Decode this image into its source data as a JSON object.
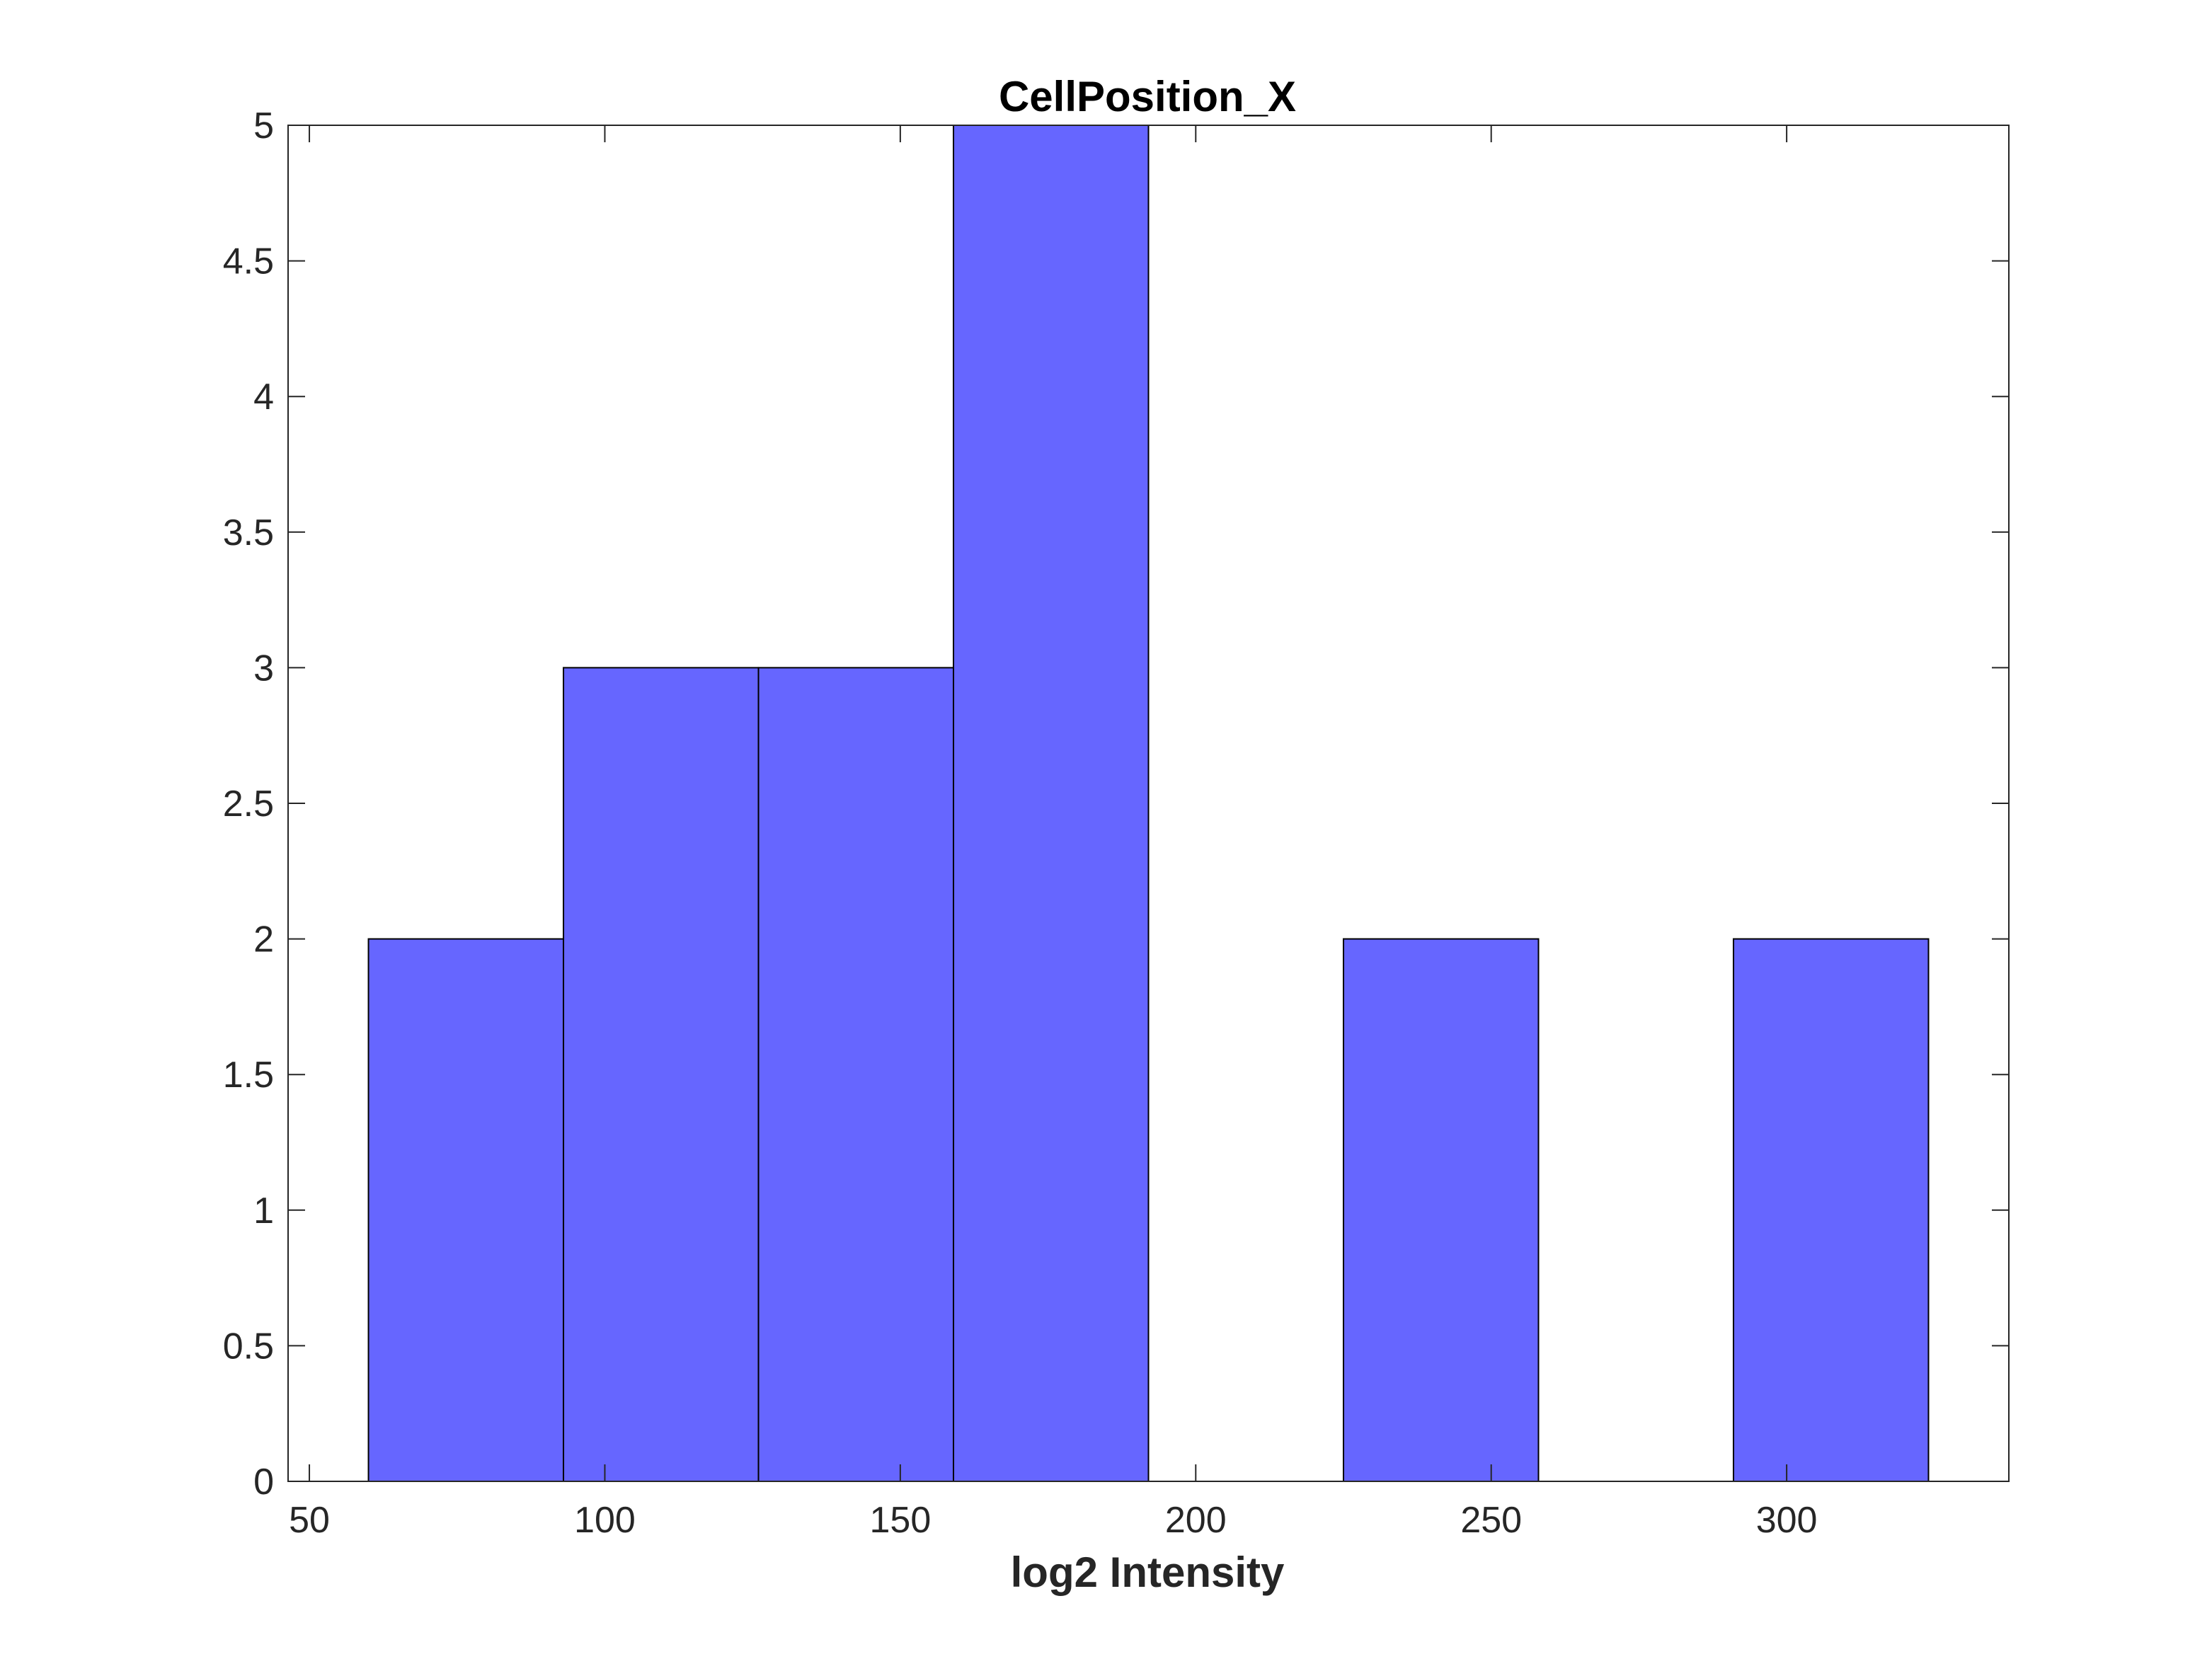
{
  "chart_data": {
    "type": "bar",
    "subtype": "histogram",
    "title": "CellPosition_X",
    "xlabel": "log2 Intensity",
    "ylabel": "",
    "xlim": [
      46.4,
      337.6
    ],
    "ylim": [
      0,
      5
    ],
    "xticks": [
      50,
      100,
      150,
      200,
      250,
      300
    ],
    "xtick_labels": [
      "50",
      "100",
      "150",
      "200",
      "250",
      "300"
    ],
    "yticks": [
      0,
      0.5,
      1,
      1.5,
      2,
      2.5,
      3,
      3.5,
      4,
      4.5,
      5
    ],
    "ytick_labels": [
      "0",
      "0.5",
      "1",
      "1.5",
      "2",
      "2.5",
      "3",
      "3.5",
      "4",
      "4.5",
      "5"
    ],
    "bins": [
      {
        "start": 60,
        "end": 93,
        "count": 2
      },
      {
        "start": 93,
        "end": 126,
        "count": 3
      },
      {
        "start": 126,
        "end": 159,
        "count": 3
      },
      {
        "start": 159,
        "end": 192,
        "count": 5
      },
      {
        "start": 192,
        "end": 225,
        "count": 0
      },
      {
        "start": 225,
        "end": 258,
        "count": 2
      },
      {
        "start": 258,
        "end": 291,
        "count": 0
      },
      {
        "start": 291,
        "end": 324,
        "count": 2
      }
    ],
    "bar_color": "#6666ff",
    "edge_color": "#000000",
    "grid": false
  }
}
